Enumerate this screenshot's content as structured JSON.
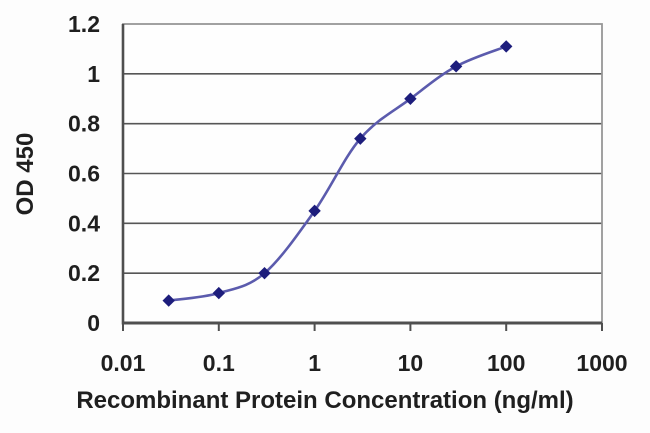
{
  "figure": {
    "kind": "elisa-standard-curve",
    "background_color": "#fdfdfd"
  },
  "chart_data": {
    "type": "line",
    "title": "",
    "xlabel": "Recombinant Protein Concentration (ng/ml)",
    "ylabel": "OD 450",
    "x_scale": "log",
    "y_scale": "linear",
    "xlim": [
      0.01,
      1000
    ],
    "ylim": [
      0,
      1.2
    ],
    "x_ticks": [
      0.01,
      0.1,
      1,
      10,
      100,
      1000
    ],
    "x_tick_labels": [
      "0.01",
      "0.1",
      "1",
      "10",
      "100",
      "1000"
    ],
    "y_ticks": [
      0,
      0.2,
      0.4,
      0.6,
      0.8,
      1,
      1.2
    ],
    "y_tick_labels": [
      "0",
      "0.2",
      "0.4",
      "0.6",
      "0.8",
      "1",
      "1.2"
    ],
    "grid": "horizontal",
    "legend": "none",
    "series": [
      {
        "name": "OD 450",
        "x": [
          0.03,
          0.1,
          0.3,
          1,
          3,
          10,
          30,
          100
        ],
        "y": [
          0.09,
          0.12,
          0.2,
          0.45,
          0.74,
          0.9,
          1.03,
          1.11
        ],
        "marker": "diamond",
        "smooth": true
      }
    ],
    "colors": {
      "line": "#5b5bad",
      "marker": "#1d1d7c",
      "grid": "#565656",
      "frame": "#979797",
      "axis": "#4f4f4f",
      "text": "#1f1f1f",
      "plot_background": "#fefefe"
    }
  }
}
